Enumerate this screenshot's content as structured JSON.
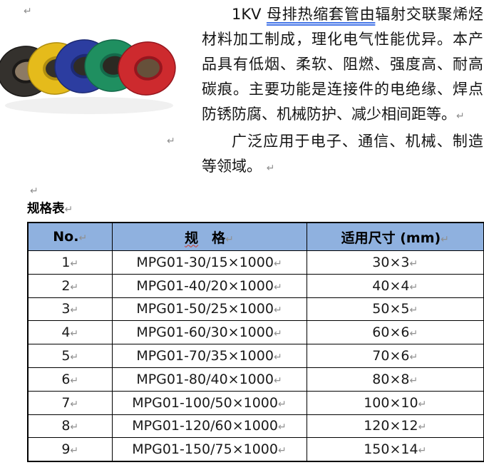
{
  "marks": {
    "pilcrow": "↵"
  },
  "intro": {
    "p1_prefix": "1KV ",
    "p1_underlined": "母排热缩套管由",
    "p1_rest": "辐射交联聚烯烃材料加工制成，理化电气性能优异。本产品具有低烟、柔软、阻燃、强度高、耐高碳痕。主要功能是连接件的电绝缘、焊点防锈防腐、机械防护、减少相间距等。",
    "p2_text": "广泛应用于电子、通信、机械、制造等领域。"
  },
  "image": {
    "alt": "heat-shrink-tube-rings-photo",
    "rings": [
      {
        "name": "black-ring",
        "color": "#34312d",
        "rim": "#1c1a18",
        "hole": "#8c7a64"
      },
      {
        "name": "yellow-ring",
        "color": "#e5bb1b",
        "rim": "#b08e10",
        "hole": "#33302a"
      },
      {
        "name": "blue-ring",
        "color": "#2c3da0",
        "rim": "#1d2a74",
        "hole": "#302c26"
      },
      {
        "name": "green-ring",
        "color": "#1f8f60",
        "rim": "#14694a",
        "hole": "#2b2922"
      },
      {
        "name": "red-ring",
        "color": "#cd2a2e",
        "rim": "#96161e",
        "hole": "#66503a"
      }
    ]
  },
  "spec_section": {
    "heading": "规格表",
    "table": {
      "header_bg": "#8FB1DF",
      "header": {
        "no": "No.",
        "spec_wavy": "规",
        "spec_rest": "　格",
        "size": "适用尺寸 (mm)"
      },
      "rows": [
        {
          "no": "1",
          "model": "MPG01-30/15×1000",
          "size": "30×3"
        },
        {
          "no": "2",
          "model": "MPG01-40/20×1000",
          "size": "40×4"
        },
        {
          "no": "3",
          "model": "MPG01-50/25×1000",
          "size": "50×5"
        },
        {
          "no": "4",
          "model": "MPG01-60/30×1000",
          "size": "60×6"
        },
        {
          "no": "5",
          "model": "MPG01-70/35×1000",
          "size": "70×6"
        },
        {
          "no": "6",
          "model": "MPG01-80/40×1000",
          "size": "80×8"
        },
        {
          "no": "7",
          "model": "MPG01-100/50×1000",
          "size": "100×10"
        },
        {
          "no": "8",
          "model": "MPG01-120/60×1000",
          "size": "120×12"
        },
        {
          "no": "9",
          "model": "MPG01-150/75×1000",
          "size": "150×14"
        }
      ]
    }
  }
}
